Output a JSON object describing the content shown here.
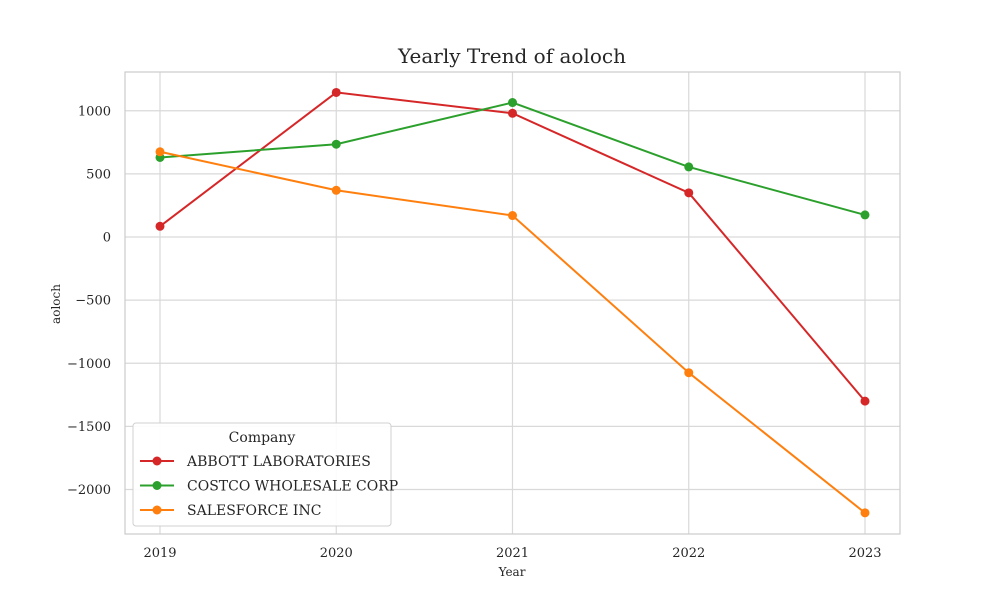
{
  "chart_data": {
    "type": "line",
    "title": "Yearly Trend of aoloch",
    "xlabel": "Year",
    "ylabel": "aoloch",
    "x": [
      "2019",
      "2020",
      "2021",
      "2022",
      "2023"
    ],
    "ylim": [
      -2250,
      1300
    ],
    "yticks": [
      1000,
      500,
      0,
      -500,
      -1000,
      -1500,
      -2000
    ],
    "ytick_labels": [
      "1000",
      "500",
      "0",
      "−500",
      "−1000",
      "−1500",
      "−2000"
    ],
    "grid": true,
    "legend": {
      "title": "Company",
      "placement": "lower-left"
    },
    "series": [
      {
        "name": "ABBOTT LABORATORIES",
        "color": "#d62728",
        "values": [
          85,
          1145,
          980,
          350,
          -1300
        ]
      },
      {
        "name": "COSTCO WHOLESALE CORP",
        "color": "#2ca02c",
        "values": [
          630,
          735,
          1065,
          555,
          175
        ]
      },
      {
        "name": "SALESFORCE INC",
        "color": "#ff7f0e",
        "values": [
          675,
          370,
          170,
          -1075,
          -2185
        ]
      }
    ]
  }
}
